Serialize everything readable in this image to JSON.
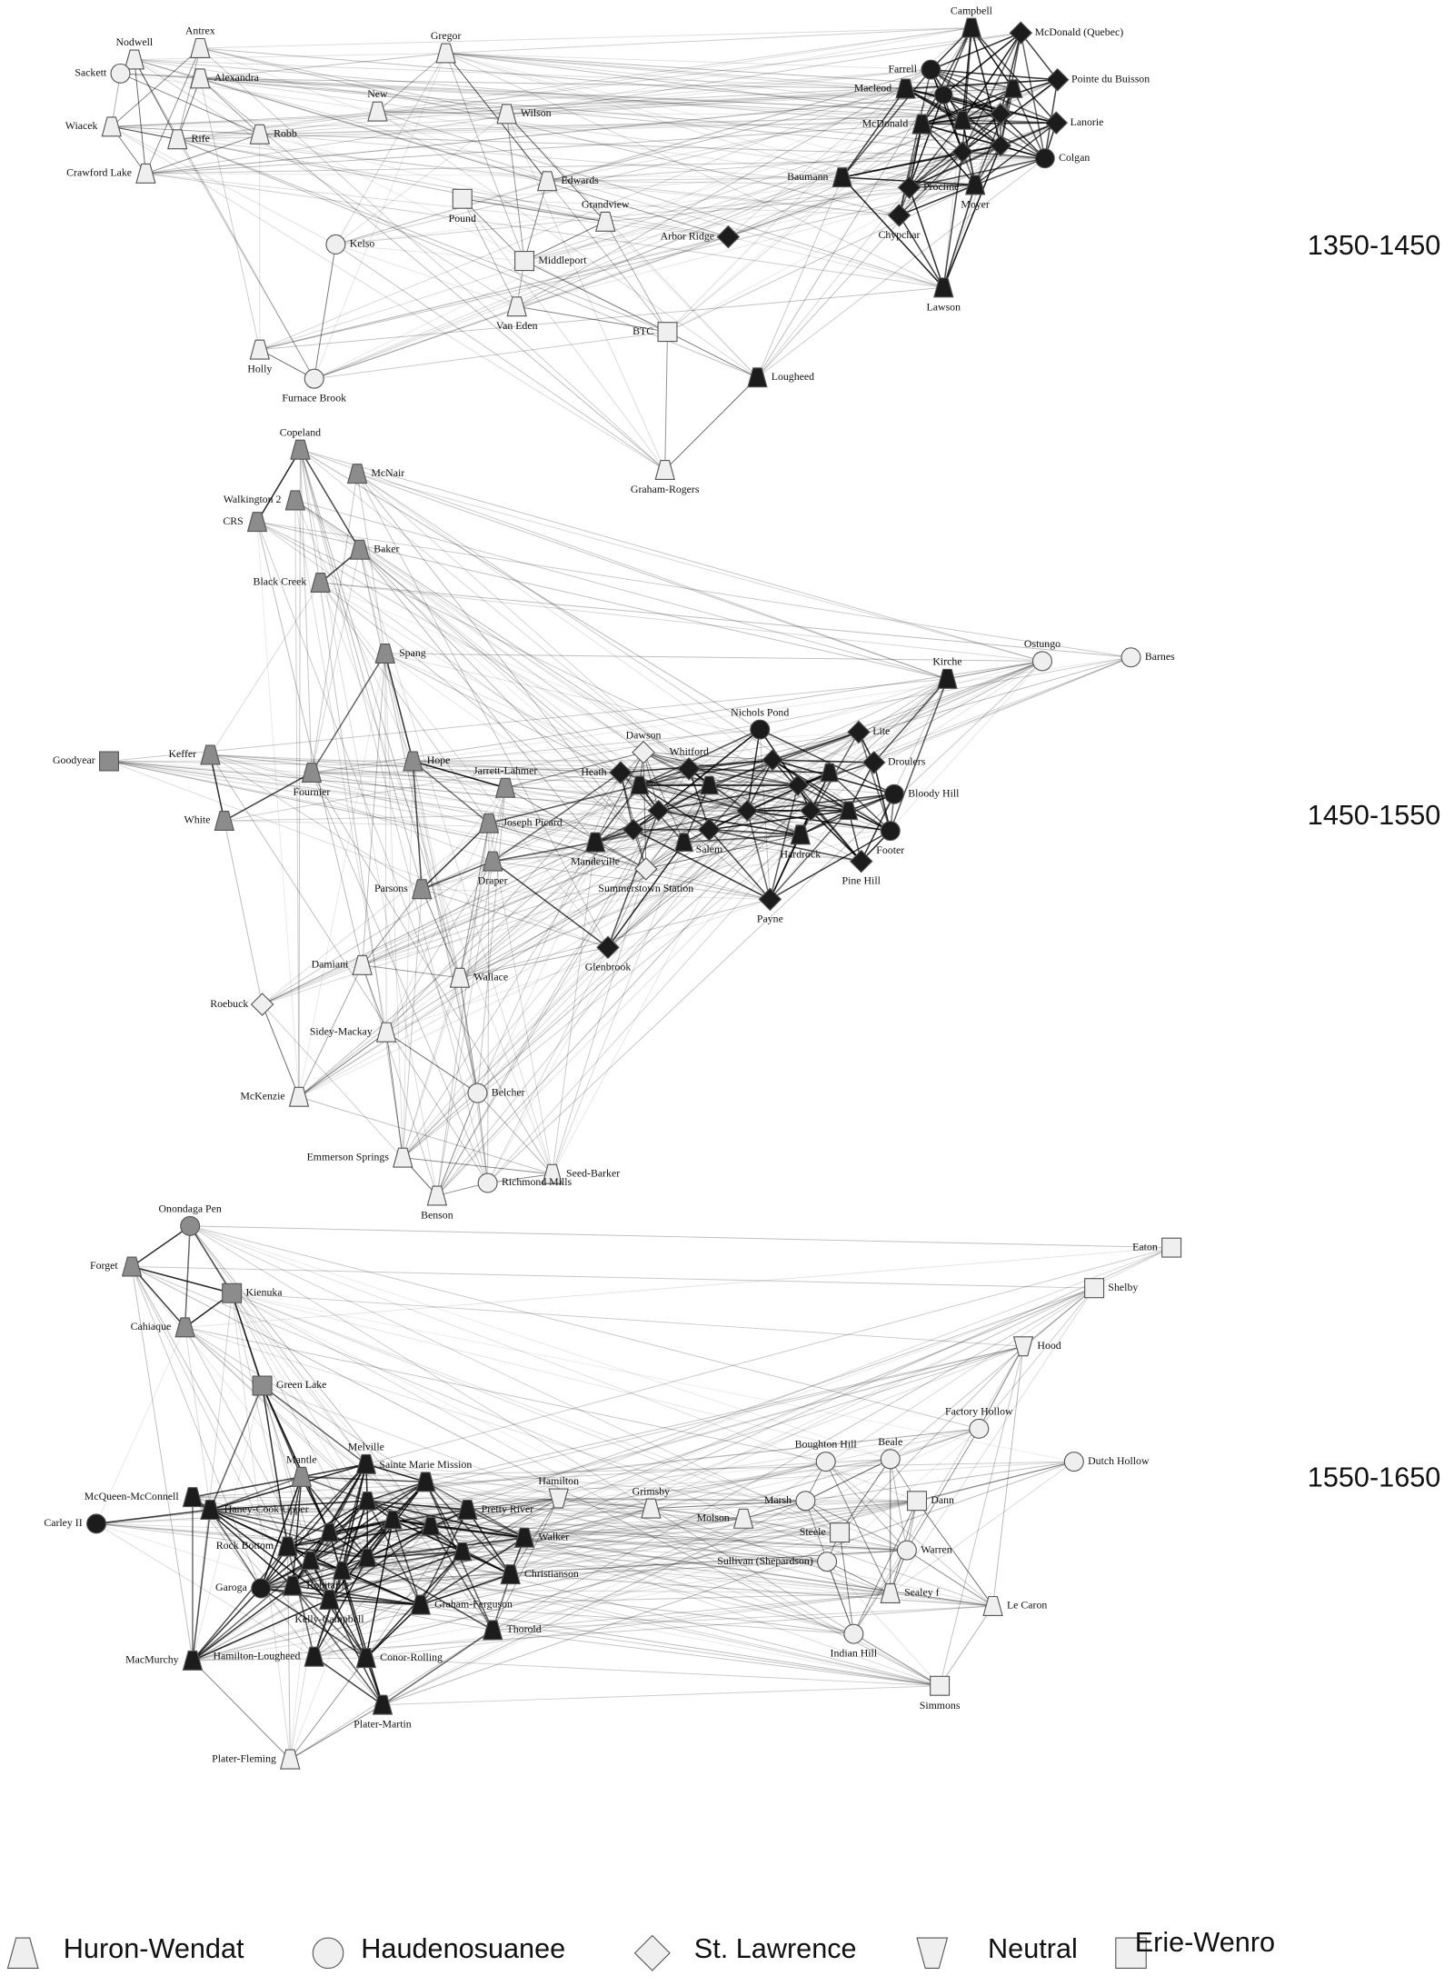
{
  "panels": [
    {
      "title": "1350-1450",
      "nodes": [
        {
          "label": "Nodwell",
          "shape": "trapezoid",
          "fill": "#efefef"
        },
        {
          "label": "Antrex",
          "shape": "trapezoid",
          "fill": "#efefef"
        },
        {
          "label": "Sackett",
          "shape": "circle",
          "fill": "#efefef"
        },
        {
          "label": "Alexandra",
          "shape": "trapezoid",
          "fill": "#efefef"
        },
        {
          "label": "Wiacek",
          "shape": "trapezoid",
          "fill": "#efefef"
        },
        {
          "label": "Rife",
          "shape": "trapezoid",
          "fill": "#efefef"
        },
        {
          "label": "Robb",
          "shape": "trapezoid",
          "fill": "#efefef"
        },
        {
          "label": "Crawford Lake",
          "shape": "trapezoid",
          "fill": "#efefef"
        },
        {
          "label": "Gregor",
          "shape": "trapezoid",
          "fill": "#efefef"
        },
        {
          "label": "New",
          "shape": "trapezoid",
          "fill": "#efefef"
        },
        {
          "label": "Wilson",
          "shape": "trapezoid",
          "fill": "#efefef"
        },
        {
          "label": "Edwards",
          "shape": "trapezoid",
          "fill": "#efefef"
        },
        {
          "label": "Pound",
          "shape": "square",
          "fill": "#efefef"
        },
        {
          "label": "Grandview",
          "shape": "trapezoid",
          "fill": "#efefef"
        },
        {
          "label": "Middleport",
          "shape": "square",
          "fill": "#efefef"
        },
        {
          "label": "Kelso",
          "shape": "circle",
          "fill": "#efefef"
        },
        {
          "label": "Van Eden",
          "shape": "trapezoid",
          "fill": "#efefef"
        },
        {
          "label": "Holly",
          "shape": "trapezoid",
          "fill": "#efefef"
        },
        {
          "label": "Furnace Brook",
          "shape": "circle",
          "fill": "#efefef"
        },
        {
          "label": "Arbor Ridge",
          "shape": "diamond",
          "fill": "#1c1c1c"
        },
        {
          "label": "BTC",
          "shape": "square",
          "fill": "#efefef"
        },
        {
          "label": "Lougheed",
          "shape": "trapezoid",
          "fill": "#1c1c1c"
        },
        {
          "label": "Graham-Rogers",
          "shape": "trapezoid",
          "fill": "#efefef"
        },
        {
          "label": "Campbell",
          "shape": "trapezoid",
          "fill": "#1c1c1c"
        },
        {
          "label": "McDonald (Quebec)",
          "shape": "diamond",
          "fill": "#1c1c1c"
        },
        {
          "label": "Farrell",
          "shape": "circle",
          "fill": "#1c1c1c"
        },
        {
          "label": "Pointe du Buisson",
          "shape": "diamond",
          "fill": "#1c1c1c"
        },
        {
          "label": "Macleod",
          "shape": "trapezoid",
          "fill": "#1c1c1c"
        },
        {
          "label": "McDonald",
          "shape": "trapezoid",
          "fill": "#1c1c1c"
        },
        {
          "label": "Lanorie",
          "shape": "diamond",
          "fill": "#1c1c1c"
        },
        {
          "label": "Colgan",
          "shape": "circle",
          "fill": "#1c1c1c"
        },
        {
          "label": "Baumann",
          "shape": "trapezoid",
          "fill": "#1c1c1c"
        },
        {
          "label": "Procline",
          "shape": "diamond",
          "fill": "#1c1c1c"
        },
        {
          "label": "Moyer",
          "shape": "trapezoid",
          "fill": "#1c1c1c"
        },
        {
          "label": "Chypchar",
          "shape": "diamond",
          "fill": "#1c1c1c"
        },
        {
          "label": "Lawson",
          "shape": "trapezoid",
          "fill": "#1c1c1c"
        }
      ]
    },
    {
      "title": "1450-1550",
      "nodes": [
        {
          "label": "Copeland",
          "shape": "trapezoid",
          "fill": "#8c8c8c"
        },
        {
          "label": "McNair",
          "shape": "trapezoid",
          "fill": "#8c8c8c"
        },
        {
          "label": "Walkington 2",
          "shape": "trapezoid",
          "fill": "#8c8c8c"
        },
        {
          "label": "CRS",
          "shape": "trapezoid",
          "fill": "#8c8c8c"
        },
        {
          "label": "Baker",
          "shape": "trapezoid",
          "fill": "#8c8c8c"
        },
        {
          "label": "Black Creek",
          "shape": "trapezoid",
          "fill": "#8c8c8c"
        },
        {
          "label": "Spang",
          "shape": "trapezoid",
          "fill": "#8c8c8c"
        },
        {
          "label": "Goodyear",
          "shape": "square",
          "fill": "#8c8c8c"
        },
        {
          "label": "Keffer",
          "shape": "trapezoid",
          "fill": "#8c8c8c"
        },
        {
          "label": "Fournier",
          "shape": "trapezoid",
          "fill": "#8c8c8c"
        },
        {
          "label": "Hope",
          "shape": "trapezoid",
          "fill": "#8c8c8c"
        },
        {
          "label": "White",
          "shape": "trapezoid",
          "fill": "#8c8c8c"
        },
        {
          "label": "Jarrett-Lahmer",
          "shape": "trapezoid",
          "fill": "#8c8c8c"
        },
        {
          "label": "Joseph Picard",
          "shape": "trapezoid",
          "fill": "#8c8c8c"
        },
        {
          "label": "Parsons",
          "shape": "trapezoid",
          "fill": "#8c8c8c"
        },
        {
          "label": "Draper",
          "shape": "trapezoid",
          "fill": "#8c8c8c"
        },
        {
          "label": "Damiani",
          "shape": "trapezoid",
          "fill": "#efefef"
        },
        {
          "label": "Wallace",
          "shape": "trapezoid",
          "fill": "#efefef"
        },
        {
          "label": "Roebuck",
          "shape": "diamond",
          "fill": "#efefef"
        },
        {
          "label": "Sidey-Mackay",
          "shape": "trapezoid",
          "fill": "#efefef"
        },
        {
          "label": "McKenzie",
          "shape": "trapezoid",
          "fill": "#efefef"
        },
        {
          "label": "Belcher",
          "shape": "circle",
          "fill": "#efefef"
        },
        {
          "label": "Emmerson Springs",
          "shape": "trapezoid",
          "fill": "#efefef"
        },
        {
          "label": "Seed-Barker",
          "shape": "trapezoid",
          "fill": "#efefef"
        },
        {
          "label": "Benson",
          "shape": "trapezoid",
          "fill": "#efefef"
        },
        {
          "label": "Richmond Mills",
          "shape": "circle",
          "fill": "#efefef"
        },
        {
          "label": "Dawson",
          "shape": "diamond",
          "fill": "#efefef"
        },
        {
          "label": "Heath",
          "shape": "diamond",
          "fill": "#1c1c1c"
        },
        {
          "label": "Whitford",
          "shape": "diamond",
          "fill": "#1c1c1c"
        },
        {
          "label": "Mandeville",
          "shape": "trapezoid",
          "fill": "#1c1c1c"
        },
        {
          "label": "Summerstown Station",
          "shape": "diamond",
          "fill": "#efefef"
        },
        {
          "label": "Salem",
          "shape": "diamond",
          "fill": "#1c1c1c"
        },
        {
          "label": "Nichols Pond",
          "shape": "circle",
          "fill": "#1c1c1c"
        },
        {
          "label": "Lite",
          "shape": "diamond",
          "fill": "#1c1c1c"
        },
        {
          "label": "Droulers",
          "shape": "diamond",
          "fill": "#1c1c1c"
        },
        {
          "label": "Bloody Hill",
          "shape": "circle",
          "fill": "#1c1c1c"
        },
        {
          "label": "Footer",
          "shape": "circle",
          "fill": "#1c1c1c"
        },
        {
          "label": "Hardrock",
          "shape": "trapezoid",
          "fill": "#1c1c1c"
        },
        {
          "label": "Pine Hill",
          "shape": "diamond",
          "fill": "#1c1c1c"
        },
        {
          "label": "Payne",
          "shape": "diamond",
          "fill": "#1c1c1c"
        },
        {
          "label": "Glenbrook",
          "shape": "diamond",
          "fill": "#1c1c1c"
        },
        {
          "label": "Kirche",
          "shape": "trapezoid",
          "fill": "#1c1c1c"
        },
        {
          "label": "Ostungo",
          "shape": "circle",
          "fill": "#efefef"
        },
        {
          "label": "Barnes",
          "shape": "circle",
          "fill": "#efefef"
        }
      ]
    },
    {
      "title": "1550-1650",
      "nodes": [
        {
          "label": "Onondaga Pen",
          "shape": "circle",
          "fill": "#8c8c8c"
        },
        {
          "label": "Forget",
          "shape": "trapezoid",
          "fill": "#8c8c8c"
        },
        {
          "label": "Kienuka",
          "shape": "square",
          "fill": "#8c8c8c"
        },
        {
          "label": "Cahiaque",
          "shape": "trapezoid",
          "fill": "#8c8c8c"
        },
        {
          "label": "Green Lake",
          "shape": "square",
          "fill": "#8c8c8c"
        },
        {
          "label": "McQueen-McConnell",
          "shape": "trapezoid",
          "fill": "#1c1c1c"
        },
        {
          "label": "Carley II",
          "shape": "circle",
          "fill": "#1c1c1c"
        },
        {
          "label": "Mantle",
          "shape": "trapezoid",
          "fill": "#8c8c8c"
        },
        {
          "label": "Haney-Cook Upper",
          "shape": "trapezoid",
          "fill": "#1c1c1c"
        },
        {
          "label": "Melville",
          "shape": "trapezoid",
          "fill": "#1c1c1c"
        },
        {
          "label": "Sainte Marie Mission",
          "shape": "trapezoid",
          "fill": "#1c1c1c"
        },
        {
          "label": "Hamilton",
          "shape": "inverted-trapezoid",
          "fill": "#efefef"
        },
        {
          "label": "Grimsby",
          "shape": "trapezoid",
          "fill": "#efefef"
        },
        {
          "label": "Molson",
          "shape": "trapezoid",
          "fill": "#efefef"
        },
        {
          "label": "Rock Bottom",
          "shape": "trapezoid",
          "fill": "#1c1c1c"
        },
        {
          "label": "Pretty River",
          "shape": "trapezoid",
          "fill": "#1c1c1c"
        },
        {
          "label": "Walker",
          "shape": "trapezoid",
          "fill": "#1c1c1c"
        },
        {
          "label": "Christianson",
          "shape": "trapezoid",
          "fill": "#1c1c1c"
        },
        {
          "label": "Garoga",
          "shape": "circle",
          "fill": "#1c1c1c"
        },
        {
          "label": "Robitaille",
          "shape": "trapezoid",
          "fill": "#1c1c1c"
        },
        {
          "label": "Kelly-Campbell",
          "shape": "trapezoid",
          "fill": "#1c1c1c"
        },
        {
          "label": "Graham-Ferguson",
          "shape": "trapezoid",
          "fill": "#1c1c1c"
        },
        {
          "label": "Thorold",
          "shape": "trapezoid",
          "fill": "#1c1c1c"
        },
        {
          "label": "MacMurchy",
          "shape": "trapezoid",
          "fill": "#1c1c1c"
        },
        {
          "label": "Hamilton-Lougheed",
          "shape": "trapezoid",
          "fill": "#1c1c1c"
        },
        {
          "label": "Conor-Rolling",
          "shape": "trapezoid",
          "fill": "#1c1c1c"
        },
        {
          "label": "Plater-Martin",
          "shape": "trapezoid",
          "fill": "#1c1c1c"
        },
        {
          "label": "Plater-Fleming",
          "shape": "trapezoid",
          "fill": "#efefef"
        },
        {
          "label": "Boughton Hill",
          "shape": "circle",
          "fill": "#efefef"
        },
        {
          "label": "Beale",
          "shape": "circle",
          "fill": "#efefef"
        },
        {
          "label": "Factory Hollow",
          "shape": "circle",
          "fill": "#efefef"
        },
        {
          "label": "Dutch Hollow",
          "shape": "circle",
          "fill": "#efefef"
        },
        {
          "label": "Hood",
          "shape": "inverted-trapezoid",
          "fill": "#efefef"
        },
        {
          "label": "Shelby",
          "shape": "square",
          "fill": "#efefef"
        },
        {
          "label": "Eaton",
          "shape": "square",
          "fill": "#efefef"
        },
        {
          "label": "Marsh",
          "shape": "circle",
          "fill": "#efefef"
        },
        {
          "label": "Dann",
          "shape": "square",
          "fill": "#efefef"
        },
        {
          "label": "Steele",
          "shape": "square",
          "fill": "#efefef"
        },
        {
          "label": "Warren",
          "shape": "circle",
          "fill": "#efefef"
        },
        {
          "label": "Sullivan (Shepardson)",
          "shape": "circle",
          "fill": "#efefef"
        },
        {
          "label": "Sealey f",
          "shape": "trapezoid",
          "fill": "#efefef"
        },
        {
          "label": "Le Caron",
          "shape": "trapezoid",
          "fill": "#efefef"
        },
        {
          "label": "Indian Hill",
          "shape": "circle",
          "fill": "#efefef"
        },
        {
          "label": "Simmons",
          "shape": "square",
          "fill": "#efefef"
        }
      ]
    }
  ],
  "legend": [
    {
      "label": "Huron-Wendat",
      "shape": "trapezoid"
    },
    {
      "label": "Haudenosuanee",
      "shape": "circle"
    },
    {
      "label": "St. Lawrence",
      "shape": "diamond"
    },
    {
      "label": "Neutral",
      "shape": "inverted-trapezoid"
    },
    {
      "label": "Erie-Wenro",
      "shape": "square"
    }
  ]
}
